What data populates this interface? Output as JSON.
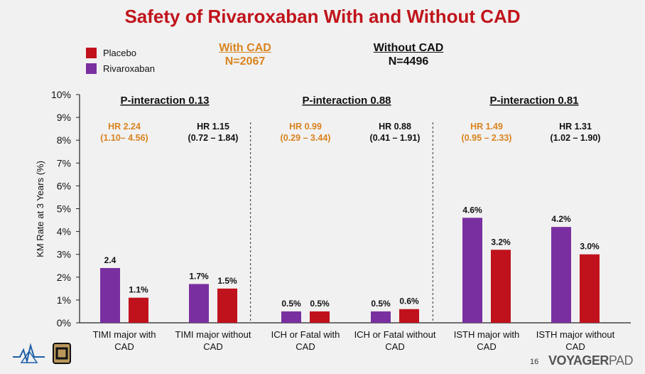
{
  "title": "Safety of Rivaroxaban With and Without CAD",
  "legend": [
    {
      "label": "Placebo",
      "color": "#c0121c"
    },
    {
      "label": "Rivaroxaban",
      "color": "#7a2fa0"
    }
  ],
  "groups": {
    "with_cad": {
      "title": "With CAD",
      "n": "N=2067",
      "color": "#d9831f"
    },
    "without_cad": {
      "title": "Without CAD",
      "n": "N=4496",
      "color": "#111111"
    }
  },
  "footer": {
    "page": "16",
    "brand_a": "VOYAGER",
    "brand_b": "PAD"
  },
  "chart_data": {
    "type": "bar",
    "ylabel": "KM Rate at 3 Years (%)",
    "ylim": [
      0,
      10
    ],
    "yticks": [
      "0%",
      "1%",
      "2%",
      "3%",
      "4%",
      "5%",
      "6%",
      "7%",
      "8%",
      "9%",
      "10%"
    ],
    "categories": [
      "TIMI major with CAD",
      "TIMI major without CAD",
      "ICH or Fatal with CAD",
      "ICH or Fatal without CAD",
      "ISTH major with CAD",
      "ISTH major without CAD"
    ],
    "category_lines": [
      [
        "TIMI major with",
        "CAD"
      ],
      [
        "TIMI major without",
        "CAD"
      ],
      [
        "ICH or Fatal with",
        "CAD"
      ],
      [
        "ICH or Fatal without",
        "CAD"
      ],
      [
        "ISTH major with",
        "CAD"
      ],
      [
        "ISTH major without",
        "CAD"
      ]
    ],
    "series": [
      {
        "name": "Rivaroxaban",
        "color": "#7a2fa0",
        "values": [
          2.4,
          1.7,
          0.5,
          0.5,
          4.6,
          4.2
        ],
        "labels": [
          "2.4",
          "1.7%",
          "0.5%",
          "0.5%",
          "4.6%",
          "4.2%"
        ]
      },
      {
        "name": "Placebo",
        "color": "#c0121c",
        "values": [
          1.1,
          1.5,
          0.5,
          0.6,
          3.2,
          3.0
        ],
        "labels": [
          "1.1%",
          "1.5%",
          "0.5%",
          "0.6%",
          "3.2%",
          "3.0%"
        ]
      }
    ],
    "hazard_ratios": [
      {
        "hr": "HR 2.24",
        "ci": "(1.10– 4.56)",
        "color": "#d9831f"
      },
      {
        "hr": "HR 1.15",
        "ci": "(0.72 – 1.84)",
        "color": "#111111"
      },
      {
        "hr": "HR 0.99",
        "ci": "(0.29 – 3.44)",
        "color": "#d9831f"
      },
      {
        "hr": "HR 0.88",
        "ci": "(0.41 – 1.91)",
        "color": "#111111"
      },
      {
        "hr": "HR 1.49",
        "ci": "(0.95 – 2.33)",
        "color": "#d9831f"
      },
      {
        "hr": "HR 1.31",
        "ci": "(1.02 – 1.90)",
        "color": "#111111"
      }
    ],
    "interactions": [
      "P-interaction 0.13",
      "P-interaction 0.88",
      "P-interaction 0.81"
    ],
    "grid": false,
    "legend_position": "top-left"
  }
}
